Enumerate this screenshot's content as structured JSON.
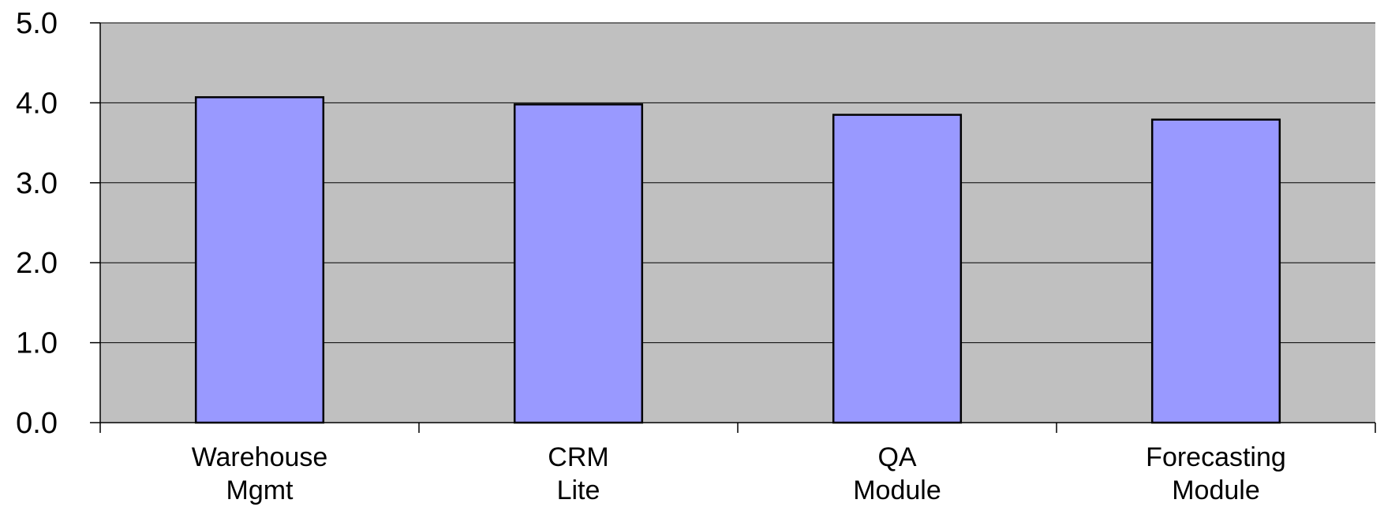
{
  "chart_data": {
    "type": "bar",
    "title": "",
    "xlabel": "",
    "ylabel": "",
    "categories": [
      [
        "Warehouse",
        "Mgmt"
      ],
      [
        "CRM",
        "Lite"
      ],
      [
        "QA",
        "Module"
      ],
      [
        "Forecasting",
        "Module"
      ]
    ],
    "values": [
      4.07,
      3.98,
      3.85,
      3.79
    ],
    "ylim": [
      0,
      5
    ],
    "yticks": [
      "0.0",
      "1.0",
      "2.0",
      "3.0",
      "4.0",
      "5.0"
    ],
    "grid": true,
    "legend": "none",
    "colors": {
      "plot_background": "#c0c0c0",
      "bar_fill": "#9999ff",
      "bar_stroke": "#000000",
      "gridline": "#000000"
    }
  }
}
